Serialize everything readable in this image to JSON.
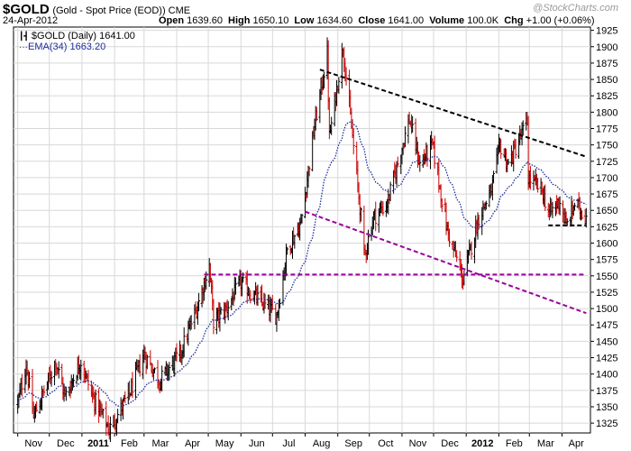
{
  "header": {
    "symbol": "$GOLD",
    "subtitle": "(Gold - Spot Price (EOD)) CME",
    "date": "24-Apr-2012",
    "stats": [
      {
        "k": "Open",
        "v": "1639.60"
      },
      {
        "k": "High",
        "v": "1650.10"
      },
      {
        "k": "Low",
        "v": "1634.60"
      },
      {
        "k": "Close",
        "v": "1641.00"
      },
      {
        "k": "Volume",
        "v": "100.0K"
      },
      {
        "k": "Chg",
        "v": "+1.00 (+0.06%)"
      }
    ],
    "brand": "@StockCharts.com"
  },
  "legend": {
    "price": "$GOLD (Daily) 1641.00",
    "ema": "EMA(34) 1663.20"
  },
  "colors": {
    "up": "#000000",
    "down": "#cc0000",
    "ema": "#1e2c9c",
    "trend_black": "#000000",
    "trend_purple": "#990099",
    "grid": "#d8d8d8"
  },
  "chart_data": {
    "type": "ohlc",
    "title": "$GOLD (Daily) 1641.00",
    "ylim": [
      1310,
      1930
    ],
    "y_ticks": [
      1325,
      1350,
      1375,
      1400,
      1425,
      1450,
      1475,
      1500,
      1525,
      1550,
      1575,
      1600,
      1625,
      1650,
      1675,
      1700,
      1725,
      1750,
      1775,
      1800,
      1825,
      1850,
      1875,
      1900,
      1925
    ],
    "x_labels": [
      "Nov",
      "Dec",
      "2011",
      "Feb",
      "Mar",
      "Apr",
      "May",
      "Jun",
      "Jul",
      "Aug",
      "Sep",
      "Oct",
      "Nov",
      "Dec",
      "2012",
      "Feb",
      "Mar",
      "Apr"
    ],
    "grid": true,
    "price_anchors": [
      [
        "2010-11-01",
        1355
      ],
      [
        "2010-11-09",
        1415
      ],
      [
        "2010-11-16",
        1335
      ],
      [
        "2010-11-29",
        1385
      ],
      [
        "2010-12-07",
        1420
      ],
      [
        "2010-12-16",
        1365
      ],
      [
        "2010-12-31",
        1420
      ],
      [
        "2011-01-10",
        1370
      ],
      [
        "2011-01-27",
        1315
      ],
      [
        "2011-02-15",
        1370
      ],
      [
        "2011-03-01",
        1430
      ],
      [
        "2011-03-16",
        1390
      ],
      [
        "2011-04-04",
        1430
      ],
      [
        "2011-04-20",
        1500
      ],
      [
        "2011-05-02",
        1565
      ],
      [
        "2011-05-06",
        1480
      ],
      [
        "2011-05-18",
        1500
      ],
      [
        "2011-06-01",
        1540
      ],
      [
        "2011-06-10",
        1525
      ],
      [
        "2011-06-27",
        1500
      ],
      [
        "2011-07-05",
        1490
      ],
      [
        "2011-07-15",
        1590
      ],
      [
        "2011-07-28",
        1630
      ],
      [
        "2011-08-10",
        1780
      ],
      [
        "2011-08-22",
        1890
      ],
      [
        "2011-08-24",
        1760
      ],
      [
        "2011-09-06",
        1900
      ],
      [
        "2011-09-23",
        1640
      ],
      [
        "2011-09-26",
        1580
      ],
      [
        "2011-10-05",
        1640
      ],
      [
        "2011-10-18",
        1660
      ],
      [
        "2011-11-08",
        1790
      ],
      [
        "2011-11-18",
        1720
      ],
      [
        "2011-11-30",
        1750
      ],
      [
        "2011-12-14",
        1620
      ],
      [
        "2011-12-29",
        1545
      ],
      [
        "2012-01-13",
        1640
      ],
      [
        "2012-01-25",
        1680
      ],
      [
        "2012-02-02",
        1750
      ],
      [
        "2012-02-10",
        1720
      ],
      [
        "2012-02-28",
        1785
      ],
      [
        "2012-02-29",
        1700
      ],
      [
        "2012-03-13",
        1680
      ],
      [
        "2012-03-20",
        1645
      ],
      [
        "2012-03-30",
        1665
      ],
      [
        "2012-04-05",
        1625
      ],
      [
        "2012-04-13",
        1660
      ],
      [
        "2012-04-24",
        1641
      ]
    ],
    "ema": {
      "name": "EMA(34) 1663.20",
      "period": 34,
      "last": 1663.2
    },
    "trendlines": [
      {
        "color": "black",
        "style": "dashed",
        "from": [
          "2011-08-15",
          1865
        ],
        "to": [
          "2012-04-24",
          1732
        ]
      },
      {
        "color": "black",
        "style": "dashed",
        "from": [
          "2012-03-19",
          1627
        ],
        "to": [
          "2012-04-24",
          1627
        ]
      },
      {
        "color": "purple",
        "style": "dashed",
        "from": [
          "2011-08-01",
          1648
        ],
        "to": [
          "2012-04-24",
          1493
        ]
      },
      {
        "color": "purple",
        "style": "dashed",
        "from": [
          "2011-04-27",
          1552
        ],
        "to": [
          "2012-04-24",
          1552
        ]
      }
    ]
  }
}
